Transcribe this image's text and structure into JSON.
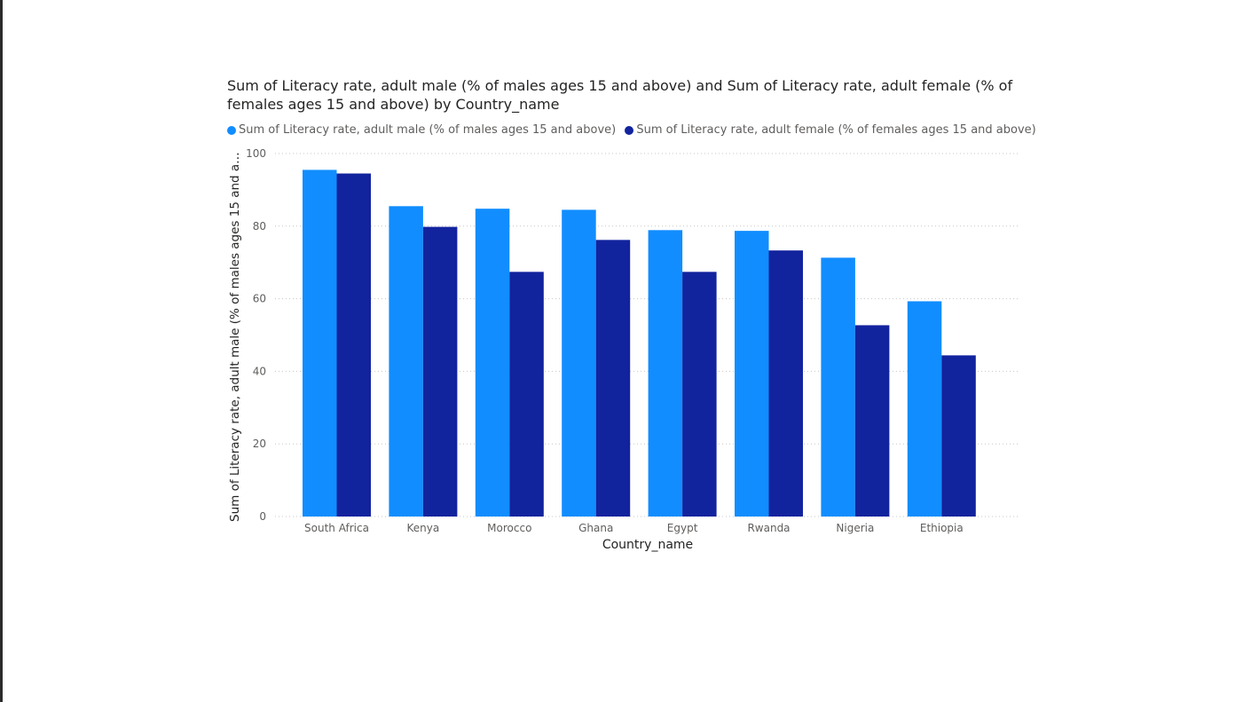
{
  "chart_data": {
    "type": "bar",
    "title": "Sum of Literacy rate, adult male (% of males ages 15 and above) and Sum of Literacy rate, adult female (% of females ages 15 and above) by Country_name",
    "xlabel": "Country_name",
    "ylabel": "Sum of Literacy rate, adult male (% of males ages 15 and above)",
    "ylim": [
      0,
      100
    ],
    "yticks": [
      "0",
      "20",
      "40",
      "60",
      "80",
      "100"
    ],
    "grid": true,
    "legend_position": "top-left",
    "categories": [
      "South Africa",
      "Kenya",
      "Morocco",
      "Ghana",
      "Egypt",
      "Rwanda",
      "Nigeria",
      "Ethiopia"
    ],
    "series": [
      {
        "name": "Sum of Literacy rate, adult male (% of males ages 15 and above)",
        "color": "#118dff",
        "values": [
          95.5,
          85.5,
          84.8,
          84.5,
          78.9,
          78.7,
          71.3,
          59.3
        ]
      },
      {
        "name": "Sum of Literacy rate, adult female (% of females ages 15 and above)",
        "color": "#12239e",
        "values": [
          94.5,
          79.8,
          67.4,
          76.2,
          67.4,
          73.3,
          52.7,
          44.4
        ]
      }
    ]
  }
}
